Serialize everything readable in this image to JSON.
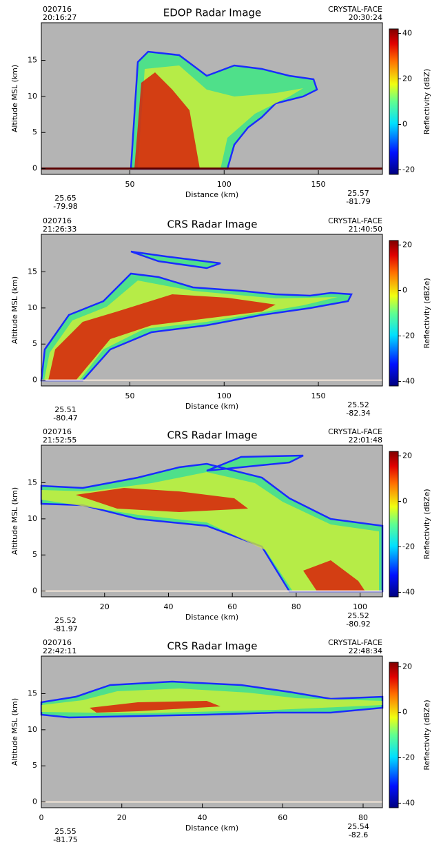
{
  "chart_data": [
    {
      "type": "heatmap",
      "title": "EDOP Radar Image",
      "date": "020716",
      "start_time": "20:16:27",
      "end_time": "20:30:24",
      "campaign": "CRYSTAL-FACE",
      "xlabel": "Distance (km)",
      "ylabel": "Altitude MSL (km)",
      "xlim": [
        3,
        184
      ],
      "xticks": [
        50,
        100,
        150
      ],
      "ylim": [
        -0.8,
        20.2
      ],
      "yticks": [
        0,
        5,
        10,
        15
      ],
      "colorbar": {
        "label": "Reflectivity (dBZ)",
        "lim": [
          -22,
          42
        ],
        "ticks": [
          -20,
          0,
          20,
          40
        ]
      },
      "start": {
        "lat": 25.65,
        "lon": -79.98
      },
      "end": {
        "lat": 25.57,
        "lon": -81.79
      }
    },
    {
      "type": "heatmap",
      "title": "CRS Radar Image",
      "date": "020716",
      "start_time": "21:26:33",
      "end_time": "21:40:50",
      "campaign": "CRYSTAL-FACE",
      "xlabel": "Distance (km)",
      "ylabel": "Altitude MSL (km)",
      "xlim": [
        3,
        184
      ],
      "xticks": [
        50,
        100,
        150
      ],
      "ylim": [
        -0.8,
        20.2
      ],
      "yticks": [
        0,
        5,
        10,
        15
      ],
      "colorbar": {
        "label": "Reflectivity (dBZe)",
        "lim": [
          -42,
          22
        ],
        "ticks": [
          -40,
          -20,
          0,
          20
        ]
      },
      "start": {
        "lat": 25.51,
        "lon": -80.47
      },
      "end": {
        "lat": 25.52,
        "lon": -82.34
      }
    },
    {
      "type": "heatmap",
      "title": "CRS Radar Image",
      "date": "020716",
      "start_time": "21:52:55",
      "end_time": "22:01:48",
      "campaign": "CRYSTAL-FACE",
      "xlabel": "Distance (km)",
      "ylabel": "Altitude MSL (km)",
      "xlim": [
        0.2,
        107
      ],
      "xticks": [
        20,
        40,
        60,
        80,
        100
      ],
      "ylim": [
        -0.8,
        20.2
      ],
      "yticks": [
        0,
        5,
        10,
        15
      ],
      "colorbar": {
        "label": "Reflectivity (dBZe)",
        "lim": [
          -42,
          22
        ],
        "ticks": [
          -40,
          -20,
          0,
          20
        ]
      },
      "start": {
        "lat": 25.52,
        "lon": -81.97
      },
      "end": {
        "lat": 25.52,
        "lon": -80.92
      }
    },
    {
      "type": "heatmap",
      "title": "CRS Radar Image",
      "date": "020716",
      "start_time": "22:42:11",
      "end_time": "22:48:34",
      "campaign": "CRYSTAL-FACE",
      "xlabel": "Distance (km)",
      "ylabel": "Altitude MSL (km)",
      "xlim": [
        0,
        84.8
      ],
      "xticks": [
        0,
        20,
        40,
        60,
        80
      ],
      "ylim": [
        -0.8,
        20.2
      ],
      "yticks": [
        0,
        5,
        10,
        15
      ],
      "colorbar": {
        "label": "Reflectivity (dBZe)",
        "lim": [
          -42,
          22
        ],
        "ticks": [
          -40,
          -20,
          0,
          20
        ]
      },
      "start": {
        "lat": 25.55,
        "lon": -81.75
      },
      "end": {
        "lat": 25.54,
        "lon": -82.6
      }
    }
  ]
}
